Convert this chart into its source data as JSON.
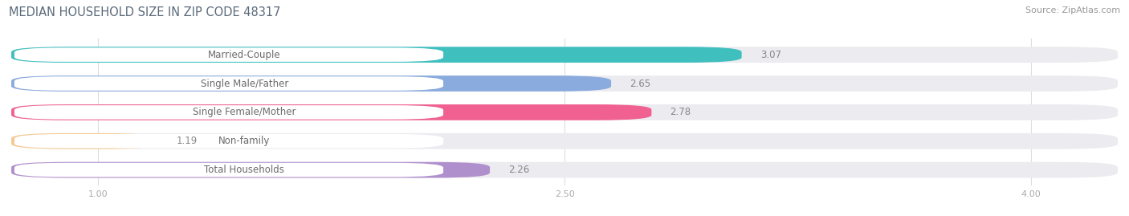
{
  "title": "MEDIAN HOUSEHOLD SIZE IN ZIP CODE 48317",
  "source": "Source: ZipAtlas.com",
  "categories": [
    "Married-Couple",
    "Single Male/Father",
    "Single Female/Mother",
    "Non-family",
    "Total Households"
  ],
  "values": [
    3.07,
    2.65,
    2.78,
    1.19,
    2.26
  ],
  "bar_colors": [
    "#40bfbf",
    "#8aabdd",
    "#f06090",
    "#f5c990",
    "#b090cc"
  ],
  "xlim_min": 0.72,
  "xlim_max": 4.28,
  "xstart": 1.0,
  "xticks": [
    1.0,
    2.5,
    4.0
  ],
  "background_color": "#ffffff",
  "bar_bg_color": "#ebebf0",
  "label_bg_color": "#ffffff",
  "title_color": "#5a6a7a",
  "source_color": "#999999",
  "label_color": "#6a6a6a",
  "value_color": "#888888",
  "title_fontsize": 10.5,
  "source_fontsize": 8,
  "label_fontsize": 8.5,
  "value_fontsize": 8.5,
  "bar_height": 0.55,
  "bar_gap": 0.45
}
